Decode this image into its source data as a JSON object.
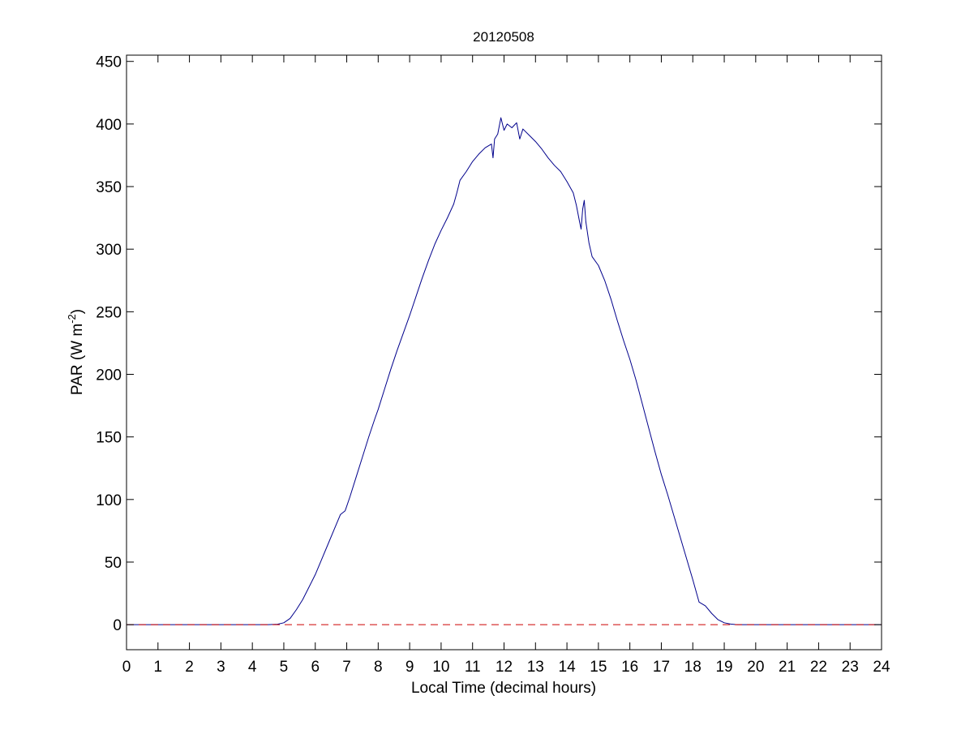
{
  "chart_data": {
    "type": "line",
    "title": "20120508",
    "xlabel": "Local Time (decimal hours)",
    "ylabel": {
      "prefix": "PAR (W m",
      "superscript": "-2",
      "suffix": ")"
    },
    "xlim": [
      0,
      24
    ],
    "ylim": [
      -20,
      455
    ],
    "xticks": [
      0,
      1,
      2,
      3,
      4,
      5,
      6,
      7,
      8,
      9,
      10,
      11,
      12,
      13,
      14,
      15,
      16,
      17,
      18,
      19,
      20,
      21,
      22,
      23,
      24
    ],
    "yticks": [
      0,
      50,
      100,
      150,
      200,
      250,
      300,
      350,
      400,
      450
    ],
    "grid": false,
    "legend": "none",
    "series": [
      {
        "color": "#00008b",
        "style": "solid",
        "points": [
          [
            0,
            0
          ],
          [
            1,
            0
          ],
          [
            2,
            0
          ],
          [
            3,
            0
          ],
          [
            4,
            0
          ],
          [
            4.5,
            0
          ],
          [
            4.8,
            0.3
          ],
          [
            5.0,
            1.5
          ],
          [
            5.2,
            5
          ],
          [
            5.4,
            12
          ],
          [
            5.6,
            20
          ],
          [
            5.8,
            30
          ],
          [
            6.0,
            40
          ],
          [
            6.2,
            52
          ],
          [
            6.4,
            64
          ],
          [
            6.6,
            76
          ],
          [
            6.8,
            88
          ],
          [
            6.95,
            91
          ],
          [
            7.1,
            102
          ],
          [
            7.3,
            118
          ],
          [
            7.5,
            134
          ],
          [
            7.7,
            150
          ],
          [
            7.9,
            165
          ],
          [
            8.0,
            172
          ],
          [
            8.2,
            188
          ],
          [
            8.4,
            204
          ],
          [
            8.6,
            219
          ],
          [
            8.8,
            233
          ],
          [
            9.0,
            247
          ],
          [
            9.2,
            262
          ],
          [
            9.4,
            277
          ],
          [
            9.6,
            291
          ],
          [
            9.8,
            304
          ],
          [
            10.0,
            315
          ],
          [
            10.2,
            325
          ],
          [
            10.4,
            336
          ],
          [
            10.5,
            345
          ],
          [
            10.6,
            355
          ],
          [
            10.8,
            362
          ],
          [
            11.0,
            370
          ],
          [
            11.2,
            376
          ],
          [
            11.4,
            381
          ],
          [
            11.6,
            384
          ],
          [
            11.65,
            373
          ],
          [
            11.7,
            388
          ],
          [
            11.8,
            392
          ],
          [
            11.9,
            405
          ],
          [
            12.0,
            395
          ],
          [
            12.1,
            400
          ],
          [
            12.25,
            397
          ],
          [
            12.4,
            401
          ],
          [
            12.5,
            388
          ],
          [
            12.6,
            396
          ],
          [
            12.8,
            391
          ],
          [
            13.0,
            386
          ],
          [
            13.2,
            380
          ],
          [
            13.4,
            373
          ],
          [
            13.6,
            367
          ],
          [
            13.8,
            362
          ],
          [
            14.0,
            354
          ],
          [
            14.2,
            345
          ],
          [
            14.3,
            335
          ],
          [
            14.4,
            322
          ],
          [
            14.45,
            316
          ],
          [
            14.5,
            332
          ],
          [
            14.55,
            339
          ],
          [
            14.6,
            322
          ],
          [
            14.7,
            305
          ],
          [
            14.8,
            294
          ],
          [
            15.0,
            287
          ],
          [
            15.2,
            275
          ],
          [
            15.4,
            260
          ],
          [
            15.6,
            243
          ],
          [
            15.8,
            227
          ],
          [
            16.0,
            212
          ],
          [
            16.2,
            195
          ],
          [
            16.4,
            176
          ],
          [
            16.6,
            157
          ],
          [
            16.8,
            138
          ],
          [
            17.0,
            120
          ],
          [
            17.2,
            104
          ],
          [
            17.4,
            87
          ],
          [
            17.6,
            70
          ],
          [
            17.8,
            53
          ],
          [
            18.0,
            36
          ],
          [
            18.2,
            18
          ],
          [
            18.4,
            15
          ],
          [
            18.6,
            9
          ],
          [
            18.8,
            4
          ],
          [
            19.0,
            1.5
          ],
          [
            19.2,
            0.5
          ],
          [
            19.4,
            0
          ],
          [
            20,
            0
          ],
          [
            21,
            0
          ],
          [
            22,
            0
          ],
          [
            23,
            0
          ],
          [
            24,
            0
          ]
        ]
      },
      {
        "color": "#cc0000",
        "style": "dashed",
        "points": [
          [
            0,
            0
          ],
          [
            24,
            0
          ]
        ]
      }
    ]
  }
}
